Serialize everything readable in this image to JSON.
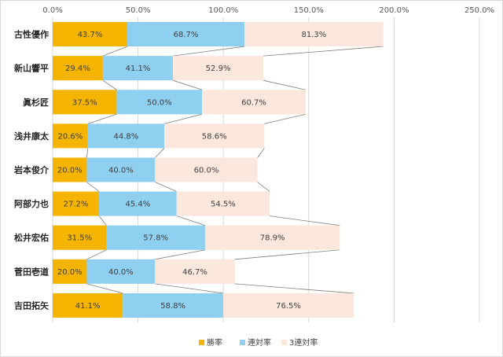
{
  "chart_data": {
    "type": "bar",
    "orientation": "horizontal",
    "stacked": true,
    "categories": [
      "古性優作",
      "新山響平",
      "眞杉匠",
      "浅井康太",
      "岩本俊介",
      "阿部力也",
      "松井宏佑",
      "菅田壱道",
      "吉田拓矢"
    ],
    "series": [
      {
        "name": "勝率",
        "color": "#f5b400",
        "values": [
          43.7,
          29.4,
          37.5,
          20.6,
          20.0,
          27.2,
          31.5,
          20.0,
          41.1
        ],
        "labels": [
          "43.7%",
          "29.4%",
          "37.5%",
          "20.6%",
          "20.0%",
          "27.2%",
          "31.5%",
          "20.0%",
          "41.1%"
        ]
      },
      {
        "name": "連対率",
        "color": "#8fcff0",
        "values": [
          68.7,
          41.1,
          50.0,
          44.8,
          40.0,
          45.4,
          57.8,
          40.0,
          58.8
        ],
        "labels": [
          "68.7%",
          "41.1%",
          "50.0%",
          "44.8%",
          "40.0%",
          "45.4%",
          "57.8%",
          "40.0%",
          "58.8%"
        ]
      },
      {
        "name": "3連対率",
        "color": "#fbe7dc",
        "values": [
          81.3,
          52.9,
          60.7,
          58.6,
          60.0,
          54.5,
          78.9,
          46.7,
          76.5
        ],
        "labels": [
          "81.3%",
          "52.9%",
          "60.7%",
          "58.6%",
          "60.0%",
          "54.5%",
          "78.9%",
          "46.7%",
          "76.5%"
        ]
      }
    ],
    "xlim": [
      0,
      250
    ],
    "ticks": [
      0,
      50,
      100,
      150,
      200,
      250
    ],
    "tick_labels": [
      "0.0%",
      "50.0%",
      "100.0%",
      "150.0%",
      "200.0%",
      "250.0%"
    ],
    "xaxis_position": "top",
    "grid": true,
    "legend_position": "bottom",
    "series_lines": true
  }
}
